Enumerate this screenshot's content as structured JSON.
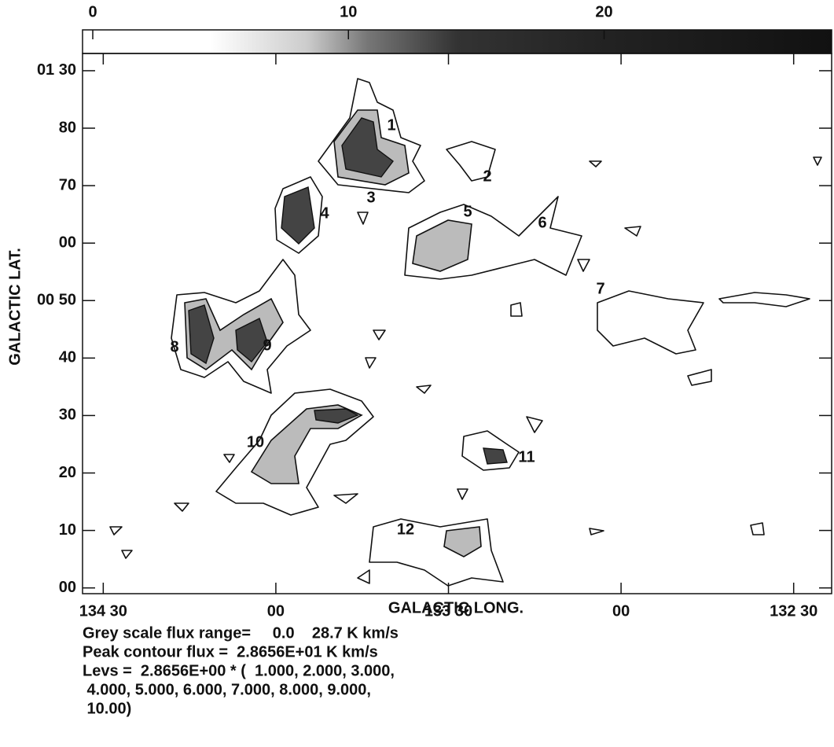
{
  "chart_data": {
    "type": "contour",
    "xlabel": "GALACTIC LONG.",
    "ylabel": "GALACTIC LAT.",
    "xlim": [
      134.56,
      132.39
    ],
    "ylim": [
      -1,
      93
    ],
    "xticks": [
      {
        "value": 134.5,
        "label": "134 30"
      },
      {
        "value": 134.0,
        "label": "00"
      },
      {
        "value": 133.5,
        "label": "133 30"
      },
      {
        "value": 133.0,
        "label": "00"
      },
      {
        "value": 132.5,
        "label": "132 30"
      }
    ],
    "yticks": [
      {
        "value": 0,
        "label": "00"
      },
      10,
      20,
      30,
      40,
      {
        "value": 50,
        "label": "00 50"
      },
      {
        "value": 60,
        "label": "00"
      },
      70,
      80,
      {
        "value": 90,
        "label": "01 30"
      }
    ],
    "colorbar": {
      "lim": [
        -0.4,
        28.9
      ],
      "ticks": [
        0,
        10,
        20
      ]
    },
    "annotations": [
      "1",
      "2",
      "3",
      "4",
      "5",
      "6",
      "7",
      "8",
      "9",
      "10",
      "11",
      "12"
    ],
    "notes": [
      "Grey scale flux range=     0.0    28.7 K km/s",
      "Peak contour flux =  2.8656E+01 K km/s",
      "Levs =  2.8656E+00 * (  1.000, 2.000, 3.000,",
      " 4.000, 5.000, 6.000, 7.000, 8.000, 9.000,",
      " 10.00)"
    ]
  }
}
